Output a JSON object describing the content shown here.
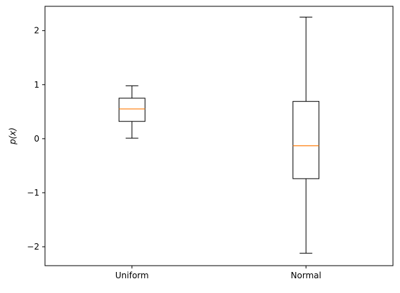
{
  "chart_data": {
    "type": "box",
    "title": "",
    "xlabel": "",
    "ylabel": "p(x)",
    "ylim": [
      -2.35,
      2.45
    ],
    "yticks": [
      -2,
      -1,
      0,
      1,
      2
    ],
    "ytick_labels": [
      "−2",
      "−1",
      "0",
      "1",
      "2"
    ],
    "categories": [
      "Uniform",
      "Normal"
    ],
    "series": [
      {
        "category": "Uniform",
        "whisker_low": 0.01,
        "q1": 0.32,
        "median": 0.55,
        "q3": 0.75,
        "whisker_high": 0.98
      },
      {
        "category": "Normal",
        "whisker_low": -2.12,
        "q1": -0.74,
        "median": -0.13,
        "q3": 0.69,
        "whisker_high": 2.25
      }
    ],
    "grid": false,
    "colors": {
      "box": "#000000",
      "median": "#ff7f0e"
    }
  }
}
